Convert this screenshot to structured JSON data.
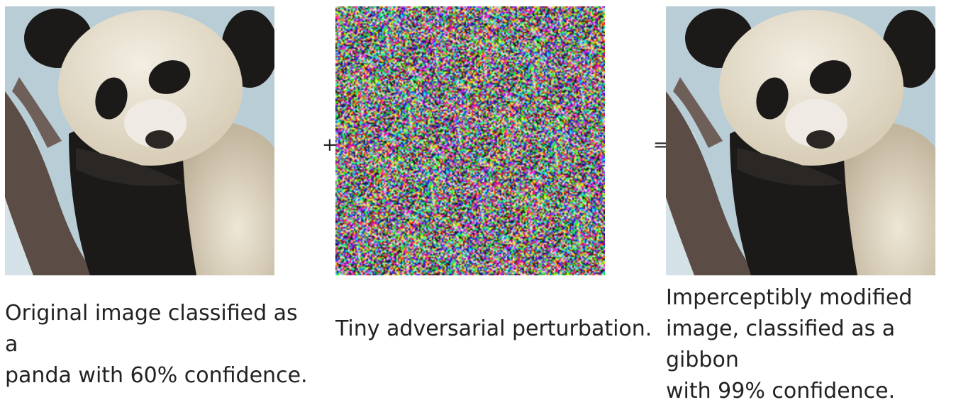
{
  "operators": {
    "plus": "+",
    "equals": "="
  },
  "panels": [
    {
      "name": "original-panda",
      "caption": "Original image classified as a\npanda with 60% confidence."
    },
    {
      "name": "adversarial-noise",
      "caption": "Tiny adversarial perturbation."
    },
    {
      "name": "modified-panda",
      "caption": "Imperceptibly modified\nimage, classified as a gibbon\nwith 99% confidence."
    }
  ],
  "colors": {
    "sky": "#b9cdd6",
    "fur_white": "#ece6d8",
    "fur_shadow": "#d8d0bc",
    "fur_black": "#1c1a19",
    "branch": "#5b4d45"
  }
}
